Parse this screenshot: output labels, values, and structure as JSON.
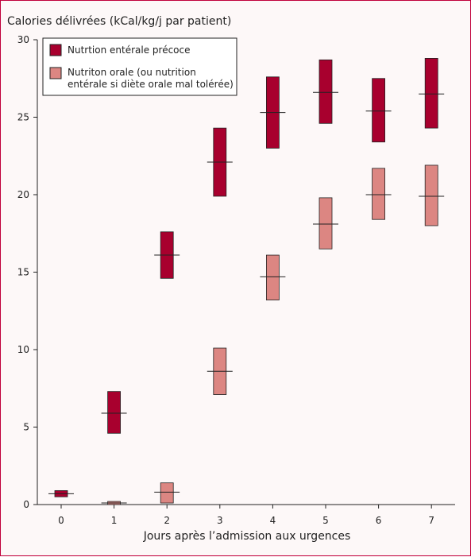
{
  "chart_data": {
    "type": "box",
    "ylabel": "Calories délivrées (kCal/kg/j par patient)",
    "xlabel": "Jours après l’admission aux urgences",
    "categories": [
      "0",
      "1",
      "2",
      "3",
      "4",
      "5",
      "6",
      "7"
    ],
    "ylim": [
      0,
      30
    ],
    "yticks": [
      0,
      5,
      10,
      15,
      20,
      25,
      30
    ],
    "legend_position": "top-left",
    "series": [
      {
        "name": "Nutrtion entérale précoce",
        "color": "#a8002e",
        "boxes": [
          {
            "x": "0",
            "low": 0.5,
            "median": 0.7,
            "high": 0.9
          },
          {
            "x": "1",
            "low": 4.6,
            "median": 5.9,
            "high": 7.3
          },
          {
            "x": "2",
            "low": 14.6,
            "median": 16.1,
            "high": 17.6
          },
          {
            "x": "3",
            "low": 19.9,
            "median": 22.1,
            "high": 24.3
          },
          {
            "x": "4",
            "low": 23.0,
            "median": 25.3,
            "high": 27.6
          },
          {
            "x": "5",
            "low": 24.6,
            "median": 26.6,
            "high": 28.7
          },
          {
            "x": "6",
            "low": 23.4,
            "median": 25.4,
            "high": 27.5
          },
          {
            "x": "7",
            "low": 24.3,
            "median": 26.5,
            "high": 28.8
          }
        ]
      },
      {
        "name": "Nutriton orale (ou nutrition entérale si diète orale mal tolérée)",
        "legend_lines": [
          "Nutriton orale (ou nutrition",
          "entérale si diète orale mal tolérée)"
        ],
        "color": "#dc8682",
        "boxes": [
          {
            "x": "0",
            "low": null,
            "median": null,
            "high": null
          },
          {
            "x": "1",
            "low": 0.0,
            "median": 0.1,
            "high": 0.2
          },
          {
            "x": "2",
            "low": 0.1,
            "median": 0.8,
            "high": 1.4
          },
          {
            "x": "3",
            "low": 7.1,
            "median": 8.6,
            "high": 10.1
          },
          {
            "x": "4",
            "low": 13.2,
            "median": 14.7,
            "high": 16.1
          },
          {
            "x": "5",
            "low": 16.5,
            "median": 18.1,
            "high": 19.8
          },
          {
            "x": "6",
            "low": 18.4,
            "median": 20.0,
            "high": 21.7
          },
          {
            "x": "7",
            "low": 18.0,
            "median": 19.9,
            "high": 21.9
          }
        ]
      }
    ]
  }
}
